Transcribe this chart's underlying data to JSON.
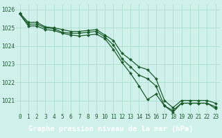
{
  "title": "Graphe pression niveau de la mer (hPa)",
  "background_color": "#cff0eb",
  "plot_background": "#cff0eb",
  "grid_color": "#aaddcc",
  "line_color": "#1a5c2a",
  "marker_color": "#1a5c2a",
  "bottom_bar_color": "#2e7d4f",
  "bottom_text_color": "#ffffff",
  "xlim": [
    -0.5,
    23.5
  ],
  "ylim": [
    1020.3,
    1026.3
  ],
  "yticks": [
    1021,
    1022,
    1023,
    1024,
    1025,
    1026
  ],
  "xticks": [
    0,
    1,
    2,
    3,
    4,
    5,
    6,
    7,
    8,
    9,
    10,
    11,
    12,
    13,
    14,
    15,
    16,
    17,
    18,
    19,
    20,
    21,
    22,
    23
  ],
  "series": [
    [
      1025.8,
      1025.3,
      1025.3,
      1025.05,
      1025.0,
      1024.9,
      1024.8,
      1024.8,
      1024.85,
      1024.9,
      1024.6,
      1024.3,
      1023.6,
      1023.25,
      1022.85,
      1022.7,
      1022.2,
      1021.0,
      1020.6,
      1021.0,
      1021.0,
      1021.0,
      1021.0,
      1020.85
    ],
    [
      1025.75,
      1025.2,
      1025.2,
      1025.0,
      1024.95,
      1024.75,
      1024.7,
      1024.7,
      1024.75,
      1024.8,
      1024.5,
      1024.05,
      1023.3,
      1022.85,
      1022.4,
      1022.2,
      1021.8,
      1020.7,
      1020.45,
      1020.85,
      1020.85,
      1020.85,
      1020.85,
      1020.65
    ],
    [
      1025.75,
      1025.1,
      1025.1,
      1024.9,
      1024.85,
      1024.7,
      1024.6,
      1024.55,
      1024.6,
      1024.65,
      1024.4,
      1023.8,
      1023.1,
      1022.5,
      1021.8,
      1021.05,
      1021.35,
      1020.7,
      1020.35,
      1020.85,
      1020.85,
      1020.85,
      1020.85,
      1020.55
    ]
  ],
  "tick_fontsize": 5.5,
  "label_fontsize": 7.5,
  "linewidth": 0.9,
  "markersize": 2.0
}
